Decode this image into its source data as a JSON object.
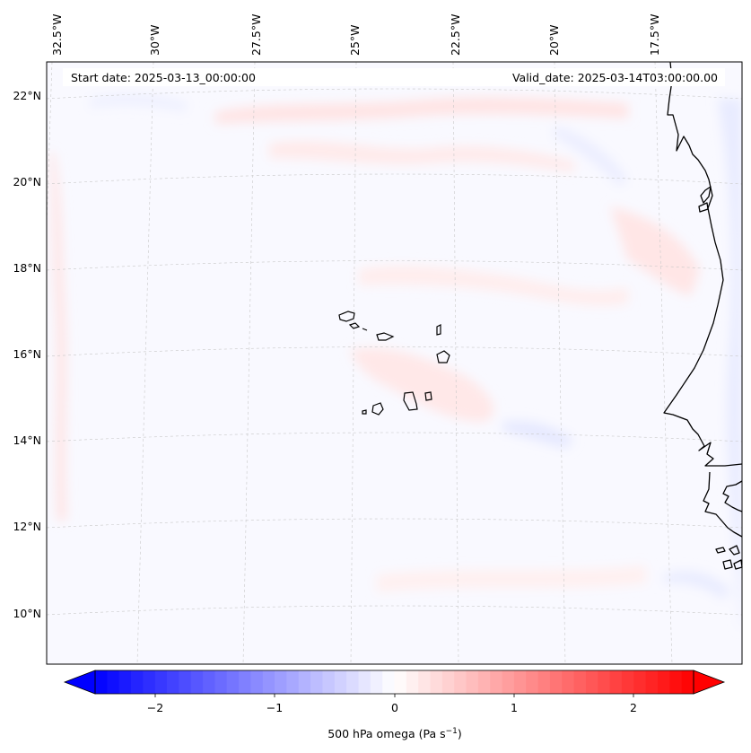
{
  "header": {
    "start_date": "Start date: 2025-03-13_00:00:00",
    "valid_date": "Valid_date: 2025-03-14T03:00:00.00"
  },
  "map": {
    "longitude_labels": [
      "32.5°W",
      "30°W",
      "27.5°W",
      "25°W",
      "22.5°W",
      "20°W",
      "17.5°W"
    ],
    "latitude_labels": [
      "22°N",
      "20°N",
      "18°N",
      "16°N",
      "14°N",
      "12°N",
      "10°N"
    ],
    "gridlines": true
  },
  "colorbar": {
    "label_main": "500 hPa omega (Pa s",
    "label_exp": "−1",
    "label_close": ")",
    "ticks": [
      "−2",
      "−1",
      "0",
      "1",
      "2"
    ],
    "range": [
      -2.5,
      2.5
    ],
    "colormap": "bwr",
    "colors": {
      "min": "#0000ff",
      "mid": "#ffffff",
      "max": "#ff0000"
    },
    "extend": "both"
  }
}
